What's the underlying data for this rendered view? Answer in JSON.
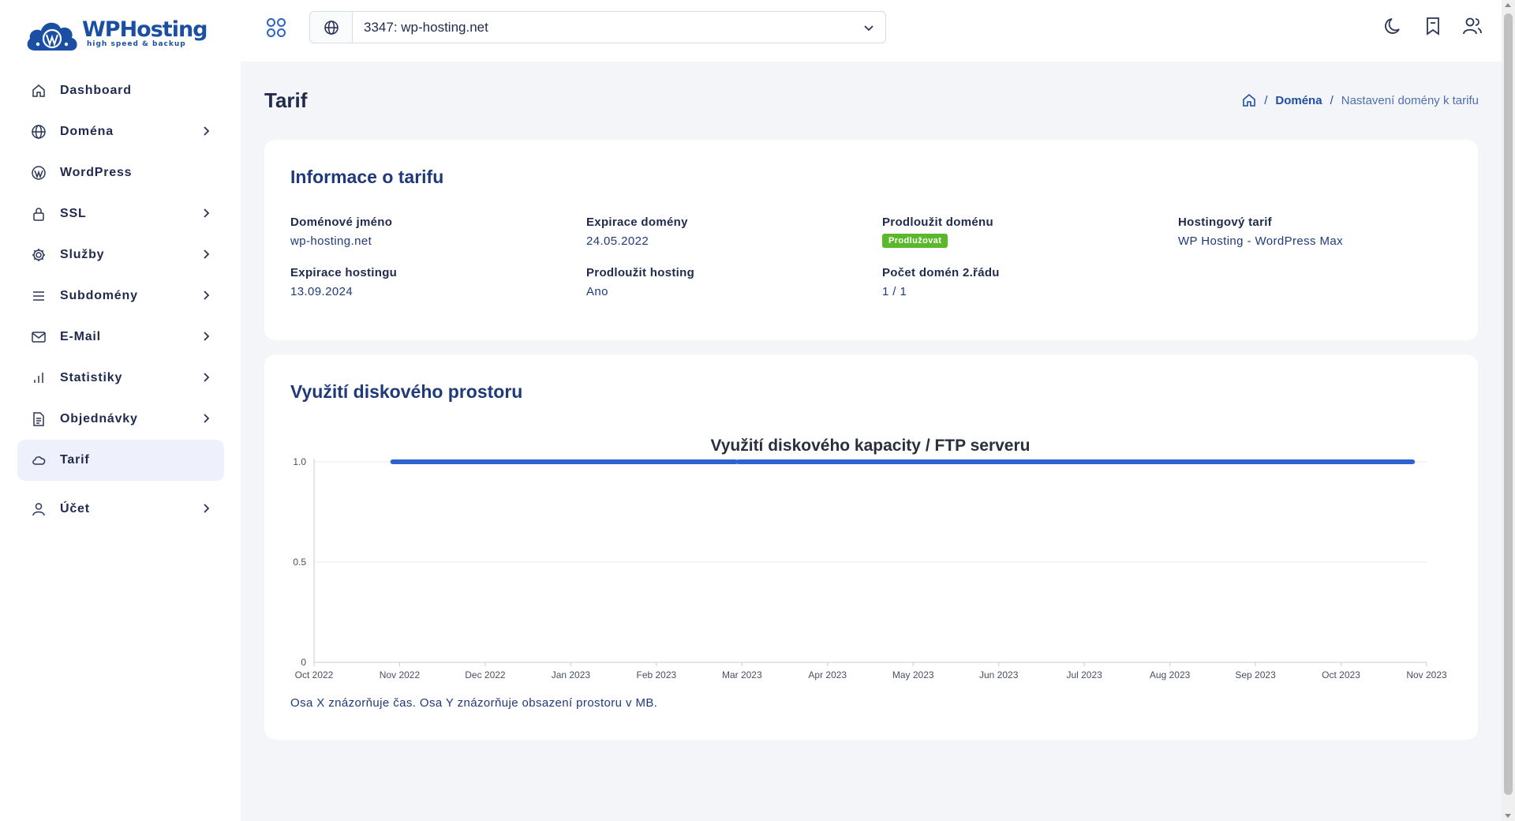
{
  "brand": {
    "name": "WPHosting",
    "tagline": "high speed & backup"
  },
  "sidebar": {
    "items": [
      {
        "label": "Dashboard",
        "icon": "home-icon",
        "has_children": false,
        "active": false
      },
      {
        "label": "Doména",
        "icon": "globe-icon",
        "has_children": true,
        "active": false
      },
      {
        "label": "WordPress",
        "icon": "wordpress-icon",
        "has_children": false,
        "active": false
      },
      {
        "label": "SSL",
        "icon": "lock-icon",
        "has_children": true,
        "active": false
      },
      {
        "label": "Služby",
        "icon": "gear-icon",
        "has_children": true,
        "active": false
      },
      {
        "label": "Subdomény",
        "icon": "list-icon",
        "has_children": true,
        "active": false
      },
      {
        "label": "E-Mail",
        "icon": "mail-icon",
        "has_children": true,
        "active": false
      },
      {
        "label": "Statistiky",
        "icon": "bar-chart-icon",
        "has_children": true,
        "active": false
      },
      {
        "label": "Objednávky",
        "icon": "document-icon",
        "has_children": true,
        "active": false
      },
      {
        "label": "Tarif",
        "icon": "cloud-icon",
        "has_children": false,
        "active": true
      },
      {
        "label": "Účet",
        "icon": "user-icon",
        "has_children": true,
        "active": false
      }
    ]
  },
  "topbar": {
    "domain_select": {
      "value": "3347: wp-hosting.net"
    },
    "icons": [
      "moon-icon",
      "bookmark-icon",
      "users-icon"
    ]
  },
  "page": {
    "title": "Tarif",
    "breadcrumb": {
      "link": "Doména",
      "current": "Nastavení domény k tarifu",
      "separator": "/"
    }
  },
  "info_card": {
    "title": "Informace o tarifu",
    "fields": {
      "domain_name": {
        "label": "Doménové jméno",
        "value": "wp-hosting.net"
      },
      "domain_expiry": {
        "label": "Expirace domény",
        "value": "24.05.2022"
      },
      "renew_domain": {
        "label": "Prodloužit doménu",
        "badge": "Prodlužovat"
      },
      "hosting_plan": {
        "label": "Hostingový tarif",
        "value": "WP Hosting - WordPress Max"
      },
      "hosting_expiry": {
        "label": "Expirace hostingu",
        "value": "13.09.2024"
      },
      "renew_hosting": {
        "label": "Prodloužit hosting",
        "value": "Ano"
      },
      "second_level_domains": {
        "label": "Počet domén 2.řádu",
        "value": "1 / 1"
      }
    }
  },
  "disk_card": {
    "title": "Využití diskového prostoru",
    "note": "Osa X znázorňuje čas. Osa Y znázorňuje obsazení prostoru v MB."
  },
  "colors": {
    "accent": "#1a4fa3",
    "line": "#2d63d0",
    "badge": "#5cb82b"
  },
  "chart_data": {
    "type": "line",
    "title": "Využití diskového kapacity / FTP serveru",
    "xlabel": "",
    "ylabel": "",
    "x_ticks": [
      "Oct 2022",
      "Nov 2022",
      "Dec 2022",
      "Jan 2023",
      "Feb 2023",
      "Mar 2023",
      "Apr 2023",
      "May 2023",
      "Jun 2023",
      "Jul 2023",
      "Aug 2023",
      "Sep 2023",
      "Oct 2023",
      "Nov 2023"
    ],
    "y_ticks": [
      "1.0",
      "0.5",
      "0"
    ],
    "ylim": [
      0,
      1
    ],
    "xlim": [
      "2022-10-01",
      "2023-11-01"
    ],
    "grid": true,
    "series": [
      {
        "x": [
          "2022-10-29",
          "2023-02-28"
        ],
        "y": [
          1,
          1
        ]
      },
      {
        "x": [
          "2023-03-01",
          "2023-10-27"
        ],
        "y": [
          1,
          1
        ]
      }
    ]
  }
}
